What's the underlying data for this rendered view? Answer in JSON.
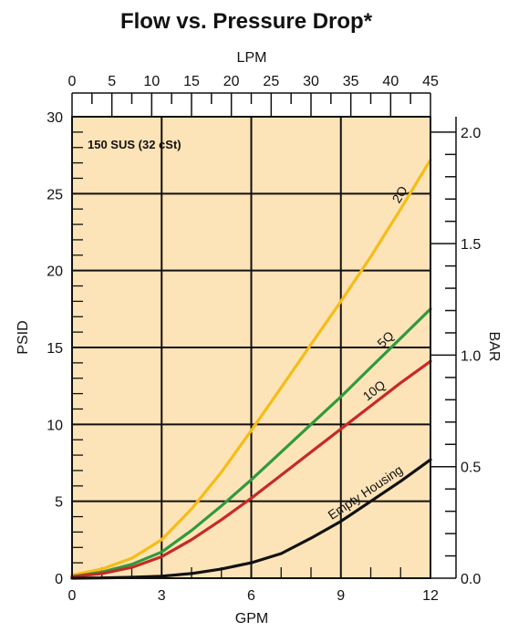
{
  "chart_data": {
    "type": "line",
    "title": "Flow vs. Pressure Drop*",
    "xlabel": "GPM",
    "ylabel": "PSID",
    "x2label": "LPM",
    "y2label": "BAR",
    "xlim": [
      0,
      12
    ],
    "ylim": [
      0,
      30
    ],
    "x2lim": [
      0,
      45
    ],
    "y2lim": [
      0,
      2.069
    ],
    "x_ticks": [
      0,
      3,
      6,
      9,
      12
    ],
    "y_ticks": [
      0,
      5,
      10,
      15,
      20,
      25,
      30
    ],
    "x2_ticks": [
      0,
      5,
      10,
      15,
      20,
      25,
      30,
      35,
      40,
      45
    ],
    "y2_ticks": [
      0.0,
      0.5,
      1.0,
      1.5,
      2.0
    ],
    "x_tick_labels": [
      "0",
      "3",
      "6",
      "9",
      "12"
    ],
    "y_tick_labels": [
      "0",
      "5",
      "10",
      "15",
      "20",
      "25",
      "30"
    ],
    "x2_tick_labels": [
      "0",
      "5",
      "10",
      "15",
      "20",
      "25",
      "30",
      "35",
      "40",
      "45"
    ],
    "y2_tick_labels": [
      "0.0",
      "0.5",
      "1.0",
      "1.5",
      "2.0"
    ],
    "annotation": "150 SUS (32 cSt)",
    "plot_background": "#fde4b8",
    "grid": true,
    "series": [
      {
        "name": "2Q",
        "color": "#f6bc16",
        "x": [
          0,
          1,
          2,
          3,
          4,
          5,
          6,
          7,
          8,
          9,
          10,
          11,
          12
        ],
        "y": [
          0.2,
          0.6,
          1.3,
          2.5,
          4.5,
          6.9,
          9.6,
          12.4,
          15.2,
          18.0,
          20.9,
          24.0,
          27.2
        ],
        "label_at": 11.1
      },
      {
        "name": "5Q",
        "color": "#2f9a3c",
        "x": [
          0,
          1,
          2,
          3,
          4,
          5,
          6,
          7,
          8,
          9,
          10,
          11,
          12
        ],
        "y": [
          0.1,
          0.4,
          0.9,
          1.7,
          3.1,
          4.7,
          6.4,
          8.2,
          10.0,
          11.8,
          13.7,
          15.6,
          17.5
        ],
        "label_at": 10.6
      },
      {
        "name": "10Q",
        "color": "#c62a26",
        "x": [
          0,
          1,
          2,
          3,
          4,
          5,
          6,
          7,
          8,
          9,
          10,
          11,
          12
        ],
        "y": [
          0.1,
          0.3,
          0.7,
          1.4,
          2.5,
          3.8,
          5.2,
          6.7,
          8.2,
          9.7,
          11.2,
          12.7,
          14.1
        ],
        "label_at": 10.2
      },
      {
        "name": "Empty Housing",
        "color": "#111111",
        "x": [
          0,
          1,
          2,
          3,
          4,
          5,
          6,
          7,
          8,
          9,
          10,
          11,
          12
        ],
        "y": [
          0.0,
          0.02,
          0.06,
          0.13,
          0.3,
          0.6,
          1.0,
          1.6,
          2.6,
          3.7,
          5.0,
          6.3,
          7.7
        ],
        "label_at": 9.9
      }
    ]
  }
}
